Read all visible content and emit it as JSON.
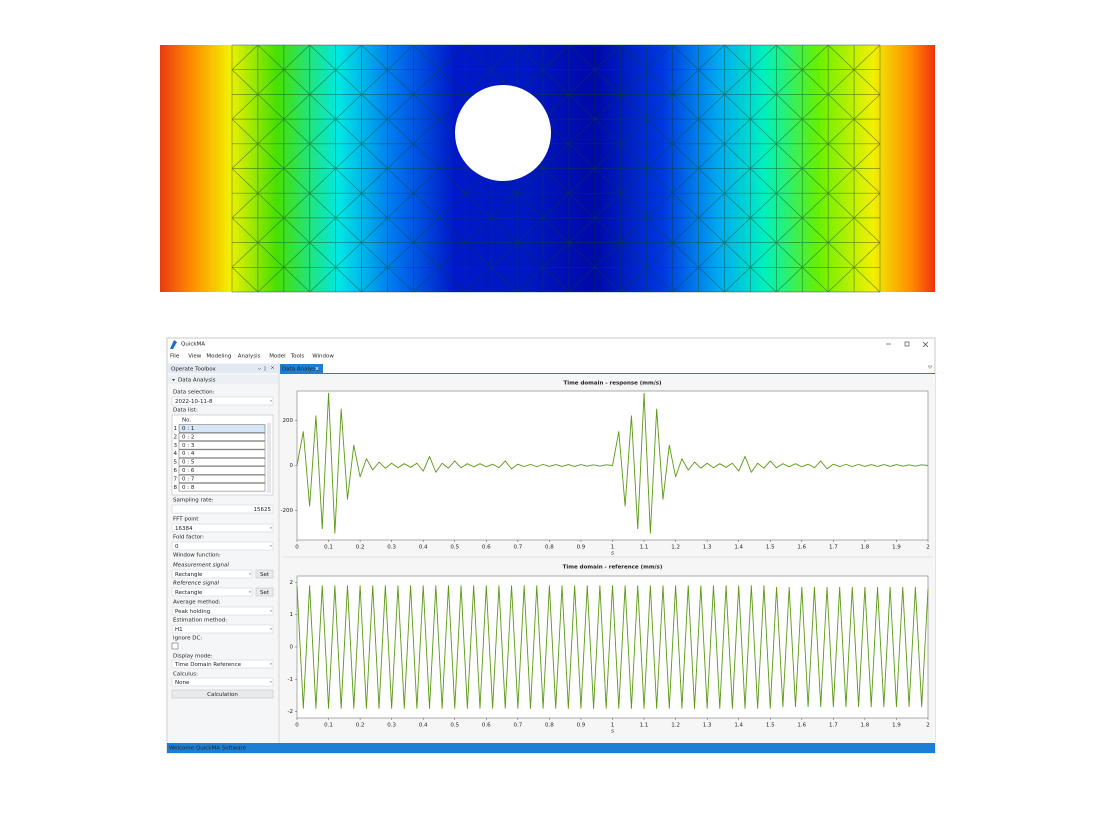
{
  "app": {
    "title": "QuickMA",
    "menu": [
      "File",
      "View",
      "Modeling",
      "Analysis",
      "Model",
      "Tools",
      "Window"
    ],
    "tab": "Data Analysis",
    "status": "Welcome QuickMA Software",
    "toolbox": {
      "title": "Operate Toolbox",
      "section": "Data Analysis",
      "data_selection": {
        "label": "Data selection:",
        "value": "2022-10-11-8"
      },
      "data_list": {
        "label": "Data list:",
        "header": "No.",
        "rows": [
          [
            "1",
            "0 : 1"
          ],
          [
            "2",
            "0 : 2"
          ],
          [
            "3",
            "0 : 3"
          ],
          [
            "4",
            "0 : 4"
          ],
          [
            "5",
            "0 : 5"
          ],
          [
            "6",
            "0 : 6"
          ],
          [
            "7",
            "0 : 7"
          ],
          [
            "8",
            "0 : 8"
          ]
        ]
      },
      "sampling_rate": {
        "label": "Sampling rate:",
        "value": "15625"
      },
      "fft_point": {
        "label": "FFT point",
        "value": "16384"
      },
      "fold_factor": {
        "label": "Fold factor:",
        "value": "0"
      },
      "window_function": {
        "label": "Window function:",
        "measurement": {
          "label": "Measurement signal",
          "value": "Rectangle",
          "button": "Set"
        },
        "reference": {
          "label": "Reference signal",
          "value": "Rectangle",
          "button": "Set"
        }
      },
      "average_method": {
        "label": "Average method:",
        "value": "Peak holding"
      },
      "estimation_method": {
        "label": "Estimation method:",
        "value": "H1"
      },
      "ignore_dc": {
        "label": "Ignore DC:"
      },
      "display_mode": {
        "label": "Display mode:",
        "value": "Time Domain Reference"
      },
      "calculus": {
        "label": "Calculus:",
        "value": "None"
      },
      "button": "Calculation"
    }
  },
  "chart_data": [
    {
      "type": "line",
      "title": "Time domain - response (mm/s)",
      "x_label": "s",
      "color": "#5a9a14",
      "x": [
        0,
        0.02,
        0.04,
        0.06,
        0.08,
        0.1,
        0.12,
        0.14,
        0.16,
        0.18,
        0.2,
        0.22,
        0.24,
        0.26,
        0.28,
        0.3,
        0.32,
        0.34,
        0.36,
        0.38,
        0.4,
        0.42,
        0.44,
        0.46,
        0.48,
        0.5,
        0.52,
        0.54,
        0.56,
        0.58,
        0.6,
        0.62,
        0.64,
        0.66,
        0.68,
        0.7,
        0.72,
        0.74,
        0.76,
        0.78,
        0.8,
        0.82,
        0.84,
        0.86,
        0.88,
        0.9,
        0.92,
        0.94,
        0.96,
        0.98,
        1,
        1.02,
        1.04,
        1.06,
        1.08,
        1.1,
        1.12,
        1.14,
        1.16,
        1.18,
        1.2,
        1.22,
        1.24,
        1.26,
        1.28,
        1.3,
        1.32,
        1.34,
        1.36,
        1.38,
        1.4,
        1.42,
        1.44,
        1.46,
        1.48,
        1.5,
        1.52,
        1.54,
        1.56,
        1.58,
        1.6,
        1.62,
        1.64,
        1.66,
        1.68,
        1.7,
        1.72,
        1.74,
        1.76,
        1.78,
        1.8,
        1.82,
        1.84,
        1.86,
        1.88,
        1.9,
        1.92,
        1.94,
        1.96,
        1.98,
        2
      ],
      "values": [
        0,
        150,
        -180,
        220,
        -280,
        320,
        -300,
        250,
        -150,
        90,
        -50,
        30,
        -20,
        15,
        -12,
        10,
        -10,
        8,
        -8,
        10,
        -25,
        40,
        -30,
        10,
        -12,
        20,
        -10,
        8,
        -6,
        8,
        -6,
        6,
        -10,
        20,
        -15,
        6,
        -5,
        5,
        -5,
        5,
        -4,
        4,
        -4,
        4,
        -4,
        4,
        -3,
        3,
        -3,
        3,
        0,
        150,
        -180,
        220,
        -280,
        320,
        -300,
        250,
        -150,
        90,
        -50,
        30,
        -20,
        15,
        -12,
        10,
        -10,
        8,
        -8,
        10,
        -25,
        40,
        -30,
        10,
        -12,
        20,
        -10,
        8,
        -6,
        8,
        -6,
        6,
        -10,
        20,
        -15,
        6,
        -5,
        5,
        -5,
        5,
        -4,
        4,
        -4,
        4,
        -4,
        4,
        -3,
        3,
        -3,
        3,
        0
      ],
      "xlim": [
        0,
        2
      ],
      "xticks": [
        0,
        0.1,
        0.2,
        0.3,
        0.4,
        0.5,
        0.6,
        0.7,
        0.8,
        0.9,
        1,
        1.1,
        1.2,
        1.3,
        1.4,
        1.5,
        1.6,
        1.7,
        1.8,
        1.9,
        2
      ],
      "ylim": [
        -330,
        330
      ],
      "yticks": [
        -200,
        0,
        200
      ]
    },
    {
      "type": "line",
      "title": "Time domain - reference (mm/s)",
      "x_label": "s",
      "color": "#5a9a14",
      "x": [
        0,
        0.02,
        0.04,
        0.06,
        0.08,
        0.1,
        0.12,
        0.14,
        0.16,
        0.18,
        0.2,
        0.22,
        0.24,
        0.26,
        0.28,
        0.3,
        0.32,
        0.34,
        0.36,
        0.38,
        0.4,
        0.42,
        0.44,
        0.46,
        0.48,
        0.5,
        0.52,
        0.54,
        0.56,
        0.58,
        0.6,
        0.62,
        0.64,
        0.66,
        0.68,
        0.7,
        0.72,
        0.74,
        0.76,
        0.78,
        0.8,
        0.82,
        0.84,
        0.86,
        0.88,
        0.9,
        0.92,
        0.94,
        0.96,
        0.98,
        1,
        1.02,
        1.04,
        1.06,
        1.08,
        1.1,
        1.12,
        1.14,
        1.16,
        1.18,
        1.2,
        1.22,
        1.24,
        1.26,
        1.28,
        1.3,
        1.32,
        1.34,
        1.36,
        1.38,
        1.4,
        1.42,
        1.44,
        1.46,
        1.48,
        1.5,
        1.52,
        1.54,
        1.56,
        1.58,
        1.6,
        1.62,
        1.64,
        1.66,
        1.68,
        1.7,
        1.72,
        1.74,
        1.76,
        1.78,
        1.8,
        1.82,
        1.84,
        1.86,
        1.88,
        1.9,
        1.92,
        1.94,
        1.96,
        1.98,
        2
      ],
      "values": [
        1.9,
        -1.9,
        1.9,
        -1.9,
        1.9,
        -1.9,
        1.9,
        -1.9,
        1.9,
        -1.9,
        1.9,
        -1.9,
        1.9,
        -1.9,
        1.9,
        -1.9,
        1.9,
        -1.9,
        1.9,
        -1.9,
        1.9,
        -1.9,
        1.9,
        -1.9,
        1.9,
        -1.9,
        1.9,
        -1.9,
        1.9,
        -1.9,
        1.9,
        -1.9,
        1.9,
        -1.9,
        1.9,
        -1.9,
        1.9,
        -1.9,
        1.9,
        -1.9,
        1.9,
        -1.9,
        1.9,
        -1.9,
        1.9,
        -1.9,
        1.9,
        -1.9,
        1.9,
        -1.9,
        1.9,
        -1.9,
        1.9,
        -1.9,
        1.9,
        -1.9,
        1.9,
        -1.9,
        1.9,
        -1.9,
        1.9,
        -1.9,
        1.9,
        -1.9,
        1.9,
        -1.9,
        1.9,
        -1.9,
        1.9,
        -1.9,
        1.9,
        -1.9,
        1.9,
        -1.9,
        1.9,
        -1.9,
        1.85,
        -1.85,
        1.85,
        -1.85,
        1.85,
        -1.85,
        1.85,
        -1.85,
        1.85,
        -1.85,
        1.85,
        -1.85,
        1.85,
        -1.85,
        1.85,
        -1.85,
        1.85,
        -1.85,
        1.85,
        -1.85,
        1.85,
        -1.85,
        1.85,
        -1.85,
        1.8
      ],
      "xlim": [
        0,
        2
      ],
      "xticks": [
        0,
        0.1,
        0.2,
        0.3,
        0.4,
        0.5,
        0.6,
        0.7,
        0.8,
        0.9,
        1,
        1.1,
        1.2,
        1.3,
        1.4,
        1.5,
        1.6,
        1.7,
        1.8,
        1.9,
        2
      ],
      "ylim": [
        -2.2,
        2.2
      ],
      "yticks": [
        -2,
        -1,
        0,
        1,
        2
      ]
    }
  ]
}
